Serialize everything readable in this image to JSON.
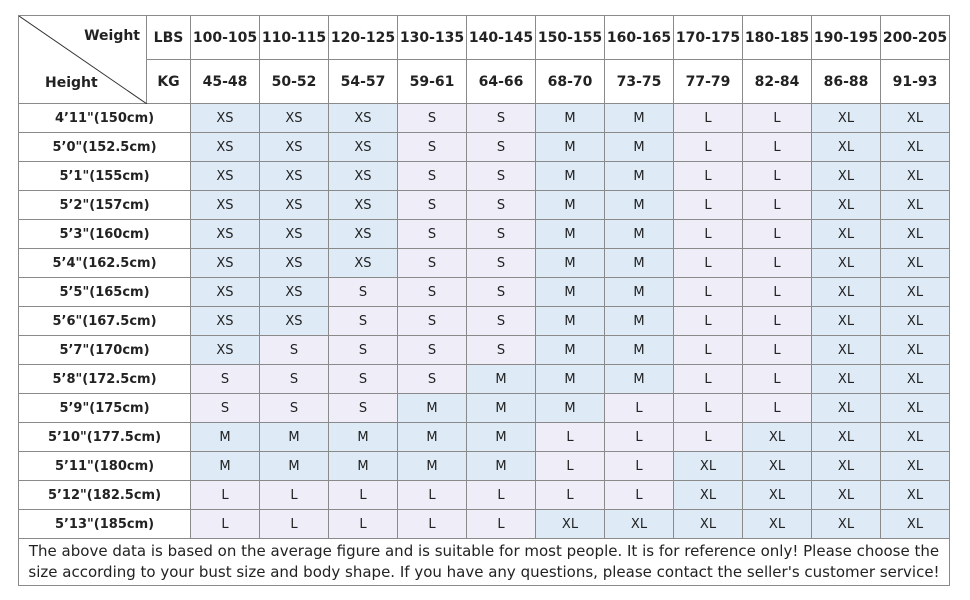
{
  "header": {
    "weight": "Weight",
    "height": "Height",
    "lbs": "LBS",
    "kg": "KG",
    "lbs_ranges": [
      "100-105",
      "110-115",
      "120-125",
      "130-135",
      "140-145",
      "150-155",
      "160-165",
      "170-175",
      "180-185",
      "190-195",
      "200-205"
    ],
    "kg_ranges": [
      "45-48",
      "50-52",
      "54-57",
      "59-61",
      "64-66",
      "68-70",
      "73-75",
      "77-79",
      "82-84",
      "86-88",
      "91-93"
    ]
  },
  "rows": [
    {
      "height": "4’11\"(150cm)",
      "sizes": [
        "XS",
        "XS",
        "XS",
        "S",
        "S",
        "M",
        "M",
        "L",
        "L",
        "XL",
        "XL"
      ]
    },
    {
      "height": "5’0\"(152.5cm)",
      "sizes": [
        "XS",
        "XS",
        "XS",
        "S",
        "S",
        "M",
        "M",
        "L",
        "L",
        "XL",
        "XL"
      ]
    },
    {
      "height": "5’1\"(155cm)",
      "sizes": [
        "XS",
        "XS",
        "XS",
        "S",
        "S",
        "M",
        "M",
        "L",
        "L",
        "XL",
        "XL"
      ]
    },
    {
      "height": "5’2\"(157cm)",
      "sizes": [
        "XS",
        "XS",
        "XS",
        "S",
        "S",
        "M",
        "M",
        "L",
        "L",
        "XL",
        "XL"
      ]
    },
    {
      "height": "5’3\"(160cm)",
      "sizes": [
        "XS",
        "XS",
        "XS",
        "S",
        "S",
        "M",
        "M",
        "L",
        "L",
        "XL",
        "XL"
      ]
    },
    {
      "height": "5’4\"(162.5cm)",
      "sizes": [
        "XS",
        "XS",
        "XS",
        "S",
        "S",
        "M",
        "M",
        "L",
        "L",
        "XL",
        "XL"
      ]
    },
    {
      "height": "5’5\"(165cm)",
      "sizes": [
        "XS",
        "XS",
        "S",
        "S",
        "S",
        "M",
        "M",
        "L",
        "L",
        "XL",
        "XL"
      ]
    },
    {
      "height": "5’6\"(167.5cm)",
      "sizes": [
        "XS",
        "XS",
        "S",
        "S",
        "S",
        "M",
        "M",
        "L",
        "L",
        "XL",
        "XL"
      ]
    },
    {
      "height": "5’7\"(170cm)",
      "sizes": [
        "XS",
        "S",
        "S",
        "S",
        "S",
        "M",
        "M",
        "L",
        "L",
        "XL",
        "XL"
      ]
    },
    {
      "height": "5’8\"(172.5cm)",
      "sizes": [
        "S",
        "S",
        "S",
        "S",
        "M",
        "M",
        "M",
        "L",
        "L",
        "XL",
        "XL"
      ]
    },
    {
      "height": "5’9\"(175cm)",
      "sizes": [
        "S",
        "S",
        "S",
        "M",
        "M",
        "M",
        "L",
        "L",
        "L",
        "XL",
        "XL"
      ]
    },
    {
      "height": "5’10\"(177.5cm)",
      "sizes": [
        "M",
        "M",
        "M",
        "M",
        "M",
        "L",
        "L",
        "L",
        "XL",
        "XL",
        "XL"
      ]
    },
    {
      "height": "5’11\"(180cm)",
      "sizes": [
        "M",
        "M",
        "M",
        "M",
        "M",
        "L",
        "L",
        "XL",
        "XL",
        "XL",
        "XL"
      ]
    },
    {
      "height": "5’12\"(182.5cm)",
      "sizes": [
        "L",
        "L",
        "L",
        "L",
        "L",
        "L",
        "L",
        "XL",
        "XL",
        "XL",
        "XL"
      ]
    },
    {
      "height": "5’13\"(185cm)",
      "sizes": [
        "L",
        "L",
        "L",
        "L",
        "L",
        "XL",
        "XL",
        "XL",
        "XL",
        "XL",
        "XL"
      ]
    }
  ],
  "note": "The above data is based on the average figure and is suitable for most people. It is for reference only! Please choose the size according to your bust size and body shape. If you have any questions, please contact the seller's customer service!"
}
